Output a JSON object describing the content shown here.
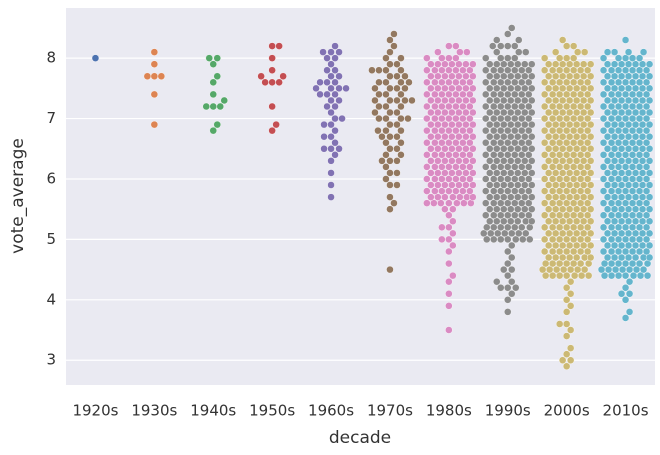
{
  "chart_data": {
    "type": "swarm",
    "xlabel": "decade",
    "ylabel": "vote_average",
    "categories": [
      "1920s",
      "1930s",
      "1940s",
      "1950s",
      "1960s",
      "1970s",
      "1980s",
      "1990s",
      "2000s",
      "2010s"
    ],
    "colors": [
      "#4c72b0",
      "#dd8452",
      "#55a868",
      "#c44e52",
      "#8172b3",
      "#937860",
      "#da8bc3",
      "#8c8c8c",
      "#ccb974",
      "#64b5cd"
    ],
    "ylim": [
      2.59,
      8.83
    ],
    "yticks": [
      3,
      4,
      5,
      6,
      7,
      8
    ],
    "grid": true,
    "values": [
      [
        8.0
      ],
      [
        8.1,
        7.9,
        7.7,
        7.7,
        7.7,
        7.4,
        6.9
      ],
      [
        8.0,
        8.0,
        7.9,
        7.7,
        7.6,
        7.4,
        7.3,
        7.2,
        7.2,
        7.2,
        6.9,
        6.8
      ],
      [
        8.2,
        8.2,
        8.0,
        7.8,
        7.7,
        7.7,
        7.6,
        7.6,
        7.6,
        7.2,
        6.9,
        6.8
      ],
      [
        8.2,
        8.1,
        8.1,
        8.1,
        8.0,
        8.0,
        7.9,
        7.8,
        7.8,
        7.7,
        7.7,
        7.6,
        7.6,
        7.6,
        7.5,
        7.5,
        7.5,
        7.5,
        7.4,
        7.4,
        7.4,
        7.3,
        7.3,
        7.2,
        7.2,
        7.1,
        7.0,
        7.0,
        6.9,
        6.9,
        6.8,
        6.7,
        6.7,
        6.6,
        6.5,
        6.5,
        6.5,
        6.4,
        6.3,
        6.1,
        5.9,
        5.7
      ],
      [
        8.4,
        8.3,
        8.2,
        8.1,
        8.0,
        8.0,
        7.9,
        7.9,
        7.8,
        7.8,
        7.8,
        7.8,
        7.7,
        7.7,
        7.7,
        7.6,
        7.6,
        7.6,
        7.6,
        7.5,
        7.5,
        7.5,
        7.5,
        7.4,
        7.4,
        7.4,
        7.3,
        7.3,
        7.3,
        7.3,
        7.3,
        7.2,
        7.2,
        7.2,
        7.1,
        7.1,
        7.1,
        7.0,
        7.0,
        7.0,
        7.0,
        6.9,
        6.9,
        6.8,
        6.8,
        6.8,
        6.7,
        6.7,
        6.7,
        6.6,
        6.6,
        6.5,
        6.5,
        6.4,
        6.4,
        6.3,
        6.3,
        6.3,
        6.2,
        6.1,
        6.1,
        6.0,
        5.9,
        5.9,
        5.7,
        5.6,
        5.5,
        4.5
      ],
      [
        8.2,
        8.2,
        8.1,
        8.1,
        8.1,
        8.0,
        8.0,
        8.0,
        8.0,
        7.9,
        7.9,
        7.9,
        7.9,
        7.9,
        7.9,
        7.9,
        7.8,
        7.8,
        7.8,
        7.8,
        7.8,
        7.8,
        7.8,
        7.7,
        7.7,
        7.7,
        7.7,
        7.7,
        7.7,
        7.7,
        7.6,
        7.6,
        7.6,
        7.6,
        7.6,
        7.6,
        7.6,
        7.5,
        7.5,
        7.5,
        7.5,
        7.5,
        7.5,
        7.5,
        7.4,
        7.4,
        7.4,
        7.4,
        7.4,
        7.4,
        7.4,
        7.3,
        7.3,
        7.3,
        7.3,
        7.3,
        7.3,
        7.3,
        7.2,
        7.2,
        7.2,
        7.2,
        7.2,
        7.2,
        7.2,
        7.1,
        7.1,
        7.1,
        7.1,
        7.1,
        7.1,
        7.1,
        7.0,
        7.0,
        7.0,
        7.0,
        7.0,
        7.0,
        7.0,
        6.9,
        6.9,
        6.9,
        6.9,
        6.9,
        6.9,
        6.9,
        6.8,
        6.8,
        6.8,
        6.8,
        6.8,
        6.8,
        6.8,
        6.7,
        6.7,
        6.7,
        6.7,
        6.7,
        6.7,
        6.7,
        6.6,
        6.6,
        6.6,
        6.6,
        6.6,
        6.6,
        6.6,
        6.5,
        6.5,
        6.5,
        6.5,
        6.5,
        6.5,
        6.5,
        6.4,
        6.4,
        6.4,
        6.4,
        6.4,
        6.4,
        6.4,
        6.3,
        6.3,
        6.3,
        6.3,
        6.3,
        6.3,
        6.3,
        6.2,
        6.2,
        6.2,
        6.2,
        6.2,
        6.2,
        6.2,
        6.1,
        6.1,
        6.1,
        6.1,
        6.1,
        6.1,
        6.1,
        6.0,
        6.0,
        6.0,
        6.0,
        6.0,
        6.0,
        6.0,
        5.9,
        5.9,
        5.9,
        5.9,
        5.9,
        5.9,
        5.9,
        5.8,
        5.8,
        5.8,
        5.8,
        5.8,
        5.8,
        5.8,
        5.7,
        5.7,
        5.7,
        5.7,
        5.7,
        5.7,
        5.7,
        5.6,
        5.6,
        5.6,
        5.6,
        5.6,
        5.6,
        5.6,
        5.5,
        5.5,
        5.4,
        5.3,
        5.2,
        5.2,
        5.1,
        5.0,
        5.0,
        4.9,
        4.8,
        4.6,
        4.4,
        4.3,
        4.1,
        3.9,
        3.5
      ],
      [
        8.5,
        8.4,
        8.3,
        8.3,
        8.2,
        8.2,
        8.2,
        8.2,
        8.1,
        8.1,
        8.1,
        8.0,
        8.0,
        8.0,
        8.0,
        7.9,
        7.9,
        7.9,
        7.9,
        7.9,
        7.9,
        7.9,
        7.8,
        7.8,
        7.8,
        7.8,
        7.8,
        7.8,
        7.8,
        7.7,
        7.7,
        7.7,
        7.7,
        7.7,
        7.7,
        7.7,
        7.6,
        7.6,
        7.6,
        7.6,
        7.6,
        7.6,
        7.6,
        7.5,
        7.5,
        7.5,
        7.5,
        7.5,
        7.5,
        7.5,
        7.4,
        7.4,
        7.4,
        7.4,
        7.4,
        7.4,
        7.4,
        7.3,
        7.3,
        7.3,
        7.3,
        7.3,
        7.3,
        7.3,
        7.2,
        7.2,
        7.2,
        7.2,
        7.2,
        7.2,
        7.2,
        7.1,
        7.1,
        7.1,
        7.1,
        7.1,
        7.1,
        7.1,
        7.0,
        7.0,
        7.0,
        7.0,
        7.0,
        7.0,
        7.0,
        6.9,
        6.9,
        6.9,
        6.9,
        6.9,
        6.9,
        6.9,
        6.8,
        6.8,
        6.8,
        6.8,
        6.8,
        6.8,
        6.8,
        6.7,
        6.7,
        6.7,
        6.7,
        6.7,
        6.7,
        6.7,
        6.6,
        6.6,
        6.6,
        6.6,
        6.6,
        6.6,
        6.6,
        6.5,
        6.5,
        6.5,
        6.5,
        6.5,
        6.5,
        6.5,
        6.4,
        6.4,
        6.4,
        6.4,
        6.4,
        6.4,
        6.4,
        6.3,
        6.3,
        6.3,
        6.3,
        6.3,
        6.3,
        6.3,
        6.2,
        6.2,
        6.2,
        6.2,
        6.2,
        6.2,
        6.2,
        6.1,
        6.1,
        6.1,
        6.1,
        6.1,
        6.1,
        6.1,
        6.0,
        6.0,
        6.0,
        6.0,
        6.0,
        6.0,
        6.0,
        5.9,
        5.9,
        5.9,
        5.9,
        5.9,
        5.9,
        5.9,
        5.8,
        5.8,
        5.8,
        5.8,
        5.8,
        5.8,
        5.8,
        5.7,
        5.7,
        5.7,
        5.7,
        5.7,
        5.7,
        5.7,
        5.6,
        5.6,
        5.6,
        5.6,
        5.6,
        5.6,
        5.6,
        5.5,
        5.5,
        5.5,
        5.5,
        5.5,
        5.5,
        5.5,
        5.4,
        5.4,
        5.4,
        5.4,
        5.4,
        5.4,
        5.4,
        5.3,
        5.3,
        5.3,
        5.3,
        5.3,
        5.3,
        5.3,
        5.2,
        5.2,
        5.2,
        5.2,
        5.2,
        5.2,
        5.2,
        5.1,
        5.1,
        5.1,
        5.1,
        5.1,
        5.1,
        5.1,
        5.0,
        5.0,
        5.0,
        5.0,
        5.0,
        5.0,
        5.0,
        4.9,
        4.8,
        4.7,
        4.6,
        4.5,
        4.5,
        4.4,
        4.3,
        4.3,
        4.2,
        4.2,
        4.2,
        4.1,
        4.0,
        3.8
      ],
      [
        8.3,
        8.2,
        8.2,
        8.1,
        8.1,
        8.1,
        8.0,
        8.0,
        8.0,
        8.0,
        7.9,
        7.9,
        7.9,
        7.9,
        7.9,
        7.9,
        7.9,
        7.8,
        7.8,
        7.8,
        7.8,
        7.8,
        7.8,
        7.8,
        7.7,
        7.7,
        7.7,
        7.7,
        7.7,
        7.7,
        7.7,
        7.6,
        7.6,
        7.6,
        7.6,
        7.6,
        7.6,
        7.6,
        7.5,
        7.5,
        7.5,
        7.5,
        7.5,
        7.5,
        7.5,
        7.4,
        7.4,
        7.4,
        7.4,
        7.4,
        7.4,
        7.4,
        7.3,
        7.3,
        7.3,
        7.3,
        7.3,
        7.3,
        7.3,
        7.2,
        7.2,
        7.2,
        7.2,
        7.2,
        7.2,
        7.2,
        7.1,
        7.1,
        7.1,
        7.1,
        7.1,
        7.1,
        7.1,
        7.0,
        7.0,
        7.0,
        7.0,
        7.0,
        7.0,
        7.0,
        6.9,
        6.9,
        6.9,
        6.9,
        6.9,
        6.9,
        6.9,
        6.8,
        6.8,
        6.8,
        6.8,
        6.8,
        6.8,
        6.8,
        6.7,
        6.7,
        6.7,
        6.7,
        6.7,
        6.7,
        6.7,
        6.6,
        6.6,
        6.6,
        6.6,
        6.6,
        6.6,
        6.6,
        6.5,
        6.5,
        6.5,
        6.5,
        6.5,
        6.5,
        6.5,
        6.4,
        6.4,
        6.4,
        6.4,
        6.4,
        6.4,
        6.4,
        6.3,
        6.3,
        6.3,
        6.3,
        6.3,
        6.3,
        6.3,
        6.2,
        6.2,
        6.2,
        6.2,
        6.2,
        6.2,
        6.2,
        6.1,
        6.1,
        6.1,
        6.1,
        6.1,
        6.1,
        6.1,
        6.0,
        6.0,
        6.0,
        6.0,
        6.0,
        6.0,
        6.0,
        5.9,
        5.9,
        5.9,
        5.9,
        5.9,
        5.9,
        5.9,
        5.8,
        5.8,
        5.8,
        5.8,
        5.8,
        5.8,
        5.8,
        5.7,
        5.7,
        5.7,
        5.7,
        5.7,
        5.7,
        5.7,
        5.6,
        5.6,
        5.6,
        5.6,
        5.6,
        5.6,
        5.6,
        5.5,
        5.5,
        5.5,
        5.5,
        5.5,
        5.5,
        5.5,
        5.4,
        5.4,
        5.4,
        5.4,
        5.4,
        5.4,
        5.4,
        5.3,
        5.3,
        5.3,
        5.3,
        5.3,
        5.3,
        5.3,
        5.2,
        5.2,
        5.2,
        5.2,
        5.2,
        5.2,
        5.2,
        5.1,
        5.1,
        5.1,
        5.1,
        5.1,
        5.1,
        5.1,
        5.0,
        5.0,
        5.0,
        5.0,
        5.0,
        5.0,
        5.0,
        4.9,
        4.9,
        4.9,
        4.9,
        4.9,
        4.9,
        4.9,
        4.8,
        4.8,
        4.8,
        4.8,
        4.8,
        4.8,
        4.8,
        4.7,
        4.7,
        4.7,
        4.7,
        4.7,
        4.7,
        4.7,
        4.6,
        4.6,
        4.6,
        4.6,
        4.6,
        4.6,
        4.6,
        4.5,
        4.5,
        4.5,
        4.5,
        4.5,
        4.5,
        4.5,
        4.4,
        4.4,
        4.4,
        4.4,
        4.4,
        4.4,
        4.4,
        4.3,
        4.2,
        4.1,
        4.0,
        3.9,
        3.8,
        3.6,
        3.6,
        3.5,
        3.4,
        3.2,
        3.1,
        3.0,
        3.0,
        2.9
      ],
      [
        8.3,
        8.1,
        8.1,
        8.1,
        8.1,
        8.0,
        8.0,
        8.0,
        8.0,
        8.0,
        7.9,
        7.9,
        7.9,
        7.9,
        7.9,
        7.9,
        7.9,
        7.8,
        7.8,
        7.8,
        7.8,
        7.8,
        7.8,
        7.8,
        7.7,
        7.7,
        7.7,
        7.7,
        7.7,
        7.7,
        7.7,
        7.6,
        7.6,
        7.6,
        7.6,
        7.6,
        7.6,
        7.6,
        7.5,
        7.5,
        7.5,
        7.5,
        7.5,
        7.5,
        7.5,
        7.4,
        7.4,
        7.4,
        7.4,
        7.4,
        7.4,
        7.4,
        7.3,
        7.3,
        7.3,
        7.3,
        7.3,
        7.3,
        7.3,
        7.2,
        7.2,
        7.2,
        7.2,
        7.2,
        7.2,
        7.2,
        7.1,
        7.1,
        7.1,
        7.1,
        7.1,
        7.1,
        7.1,
        7.0,
        7.0,
        7.0,
        7.0,
        7.0,
        7.0,
        7.0,
        6.9,
        6.9,
        6.9,
        6.9,
        6.9,
        6.9,
        6.9,
        6.8,
        6.8,
        6.8,
        6.8,
        6.8,
        6.8,
        6.8,
        6.7,
        6.7,
        6.7,
        6.7,
        6.7,
        6.7,
        6.7,
        6.6,
        6.6,
        6.6,
        6.6,
        6.6,
        6.6,
        6.6,
        6.5,
        6.5,
        6.5,
        6.5,
        6.5,
        6.5,
        6.5,
        6.4,
        6.4,
        6.4,
        6.4,
        6.4,
        6.4,
        6.4,
        6.3,
        6.3,
        6.3,
        6.3,
        6.3,
        6.3,
        6.3,
        6.2,
        6.2,
        6.2,
        6.2,
        6.2,
        6.2,
        6.2,
        6.1,
        6.1,
        6.1,
        6.1,
        6.1,
        6.1,
        6.1,
        6.0,
        6.0,
        6.0,
        6.0,
        6.0,
        6.0,
        6.0,
        5.9,
        5.9,
        5.9,
        5.9,
        5.9,
        5.9,
        5.9,
        5.8,
        5.8,
        5.8,
        5.8,
        5.8,
        5.8,
        5.8,
        5.7,
        5.7,
        5.7,
        5.7,
        5.7,
        5.7,
        5.7,
        5.6,
        5.6,
        5.6,
        5.6,
        5.6,
        5.6,
        5.6,
        5.5,
        5.5,
        5.5,
        5.5,
        5.5,
        5.5,
        5.5,
        5.4,
        5.4,
        5.4,
        5.4,
        5.4,
        5.4,
        5.4,
        5.3,
        5.3,
        5.3,
        5.3,
        5.3,
        5.3,
        5.3,
        5.2,
        5.2,
        5.2,
        5.2,
        5.2,
        5.2,
        5.2,
        5.1,
        5.1,
        5.1,
        5.1,
        5.1,
        5.1,
        5.1,
        5.0,
        5.0,
        5.0,
        5.0,
        5.0,
        5.0,
        5.0,
        4.9,
        4.9,
        4.9,
        4.9,
        4.9,
        4.9,
        4.9,
        4.8,
        4.8,
        4.8,
        4.8,
        4.8,
        4.8,
        4.8,
        4.7,
        4.7,
        4.7,
        4.7,
        4.7,
        4.7,
        4.7,
        4.6,
        4.6,
        4.6,
        4.6,
        4.6,
        4.6,
        4.6,
        4.5,
        4.5,
        4.5,
        4.5,
        4.5,
        4.5,
        4.5,
        4.4,
        4.4,
        4.4,
        4.4,
        4.4,
        4.4,
        4.4,
        4.3,
        4.2,
        4.1,
        4.1,
        4.0,
        3.8,
        3.7
      ]
    ]
  }
}
